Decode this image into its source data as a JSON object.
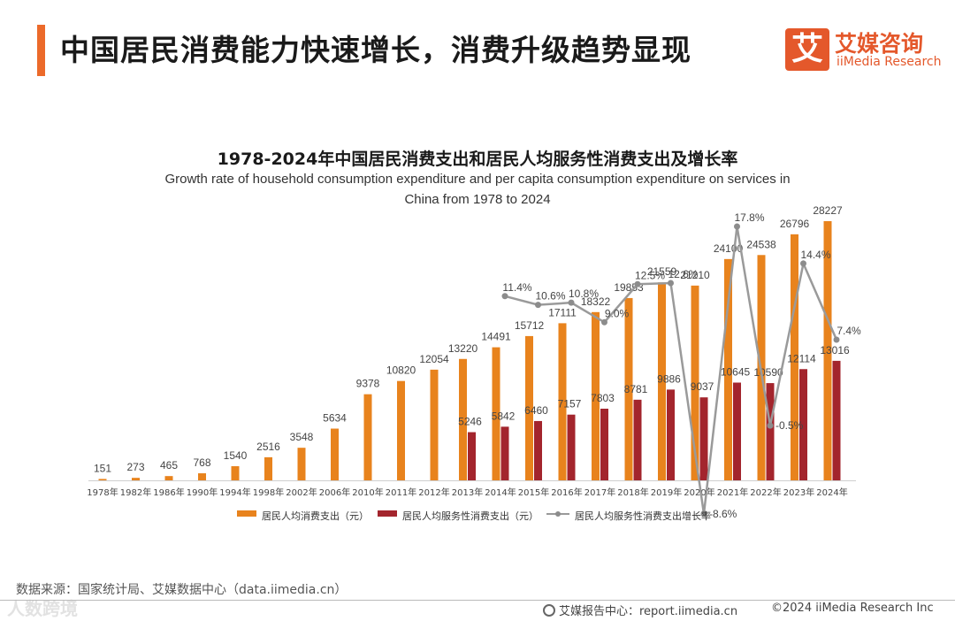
{
  "header": {
    "title": "中国居民消费能力快速增长，消费升级趋势显现",
    "logo_mark": "艾",
    "logo_cn": "艾媒咨询",
    "logo_en": "iiMedia Research"
  },
  "colors": {
    "accent": "#ec6a2a",
    "bar_total": "#e8831d",
    "bar_service": "#a3252d",
    "line_growth": "#9a9a9a"
  },
  "chart_data": {
    "type": "bar",
    "title": "1978-2024年中国居民消费支出和居民人均服务性消费支出及增长率",
    "subtitle": "Growth rate of household consumption expenditure and per capita consumption expenditure on services in China from 1978 to 2024",
    "categories": [
      "1978年",
      "1982年",
      "1986年",
      "1990年",
      "1994年",
      "1998年",
      "2002年",
      "2006年",
      "2010年",
      "2011年",
      "2012年",
      "2013年",
      "2014年",
      "2015年",
      "2016年",
      "2017年",
      "2018年",
      "2019年",
      "2020年",
      "2021年",
      "2022年",
      "2023年",
      "2024年"
    ],
    "series": [
      {
        "name": "居民人均消费支出（元）",
        "type": "bar",
        "values": [
          151,
          273,
          465,
          768,
          1540,
          2516,
          3548,
          5634,
          9378,
          10820,
          12054,
          13220,
          14491,
          15712,
          17111,
          18322,
          19853,
          21559,
          21210,
          24100,
          24538,
          26796,
          28227
        ]
      },
      {
        "name": "居民人均服务性消费支出（元）",
        "type": "bar",
        "values": [
          null,
          null,
          null,
          null,
          null,
          null,
          null,
          null,
          null,
          null,
          null,
          5246,
          5842,
          6460,
          7157,
          7803,
          8781,
          9886,
          9037,
          10645,
          10590,
          12114,
          13016
        ]
      },
      {
        "name": "居民人均服务性消费支出增长率",
        "type": "line",
        "unit": "%",
        "values": [
          null,
          null,
          null,
          null,
          null,
          null,
          null,
          null,
          null,
          null,
          null,
          null,
          11.4,
          10.6,
          10.8,
          9.0,
          12.5,
          12.6,
          -8.6,
          17.8,
          -0.5,
          14.4,
          7.4
        ],
        "labels": [
          null,
          null,
          null,
          null,
          null,
          null,
          null,
          null,
          null,
          null,
          null,
          null,
          "11.4%",
          "10.6%",
          "10.8%",
          "9.0%",
          "12.5%",
          "12.6%",
          "-8.6%",
          "17.8%",
          "-0.5%",
          "14.4%",
          "7.4%"
        ]
      }
    ],
    "ylim": [
      0,
      30000
    ],
    "y2lim": [
      -10,
      20
    ],
    "legend_position": "bottom",
    "grid": false
  },
  "source": "数据来源：国家统计局、艾媒数据中心（data.iimedia.cn）",
  "footer": {
    "report": "艾媒报告中心：report.iimedia.cn",
    "copyright": "©2024  iiMedia Research  Inc"
  },
  "watermark": "人数跨境"
}
